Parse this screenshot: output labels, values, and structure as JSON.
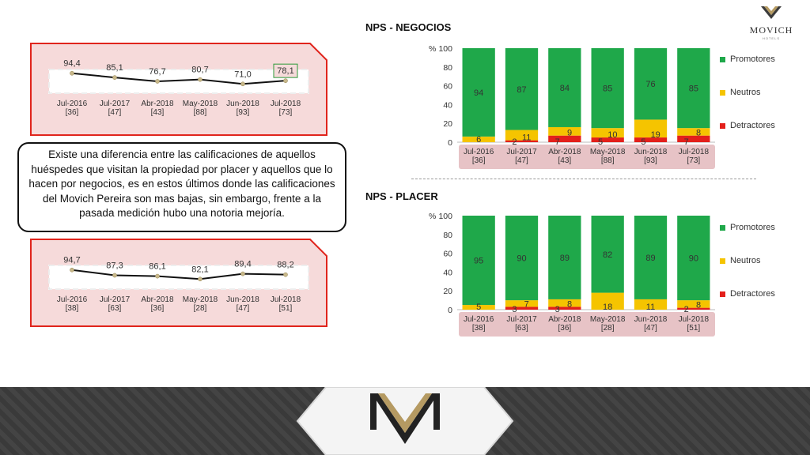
{
  "brand": {
    "name": "MOVICH",
    "sub": "HOTELS"
  },
  "callout": "Existe una diferencia entre las calificaciones de aquellos huéspedes que visitan la propiedad por placer y aquellos que lo hacen por negocios, es en estos últimos donde las calificaciones del Movich Pereira son mas bajas, sin embargo, frente a la pasada medición hubo una notoria mejoría.",
  "section_titles": {
    "negocios": "NPS - NEGOCIOS",
    "placer": "NPS - PLACER"
  },
  "colors": {
    "promotores": "#1fa84a",
    "neutros": "#f5c400",
    "detractores": "#e3201b",
    "panel_border": "#e0241c",
    "panel_fill": "#f6dada",
    "axis_box": "#e7c3c6"
  },
  "legend": [
    "Promotores",
    "Neutros",
    "Detractores"
  ],
  "chart_data": [
    {
      "type": "line",
      "categories": [
        "Jul-2016\n[36]",
        "Jul-2017\n[47]",
        "Abr-2018\n[43]",
        "May-2018\n[88]",
        "Jun-2018\n[93]",
        "Jul-2018\n[73]"
      ],
      "values": [
        94.4,
        85.1,
        76.7,
        80.7,
        71.0,
        78.1
      ],
      "labels": [
        "94,4",
        "85,1",
        "76,7",
        "80,7",
        "71,0",
        "78,1"
      ],
      "highlight_last": true
    },
    {
      "type": "line",
      "categories": [
        "Jul-2016\n[38]",
        "Jul-2017\n[63]",
        "Abr-2018\n[36]",
        "May-2018\n[28]",
        "Jun-2018\n[47]",
        "Jul-2018\n[51]"
      ],
      "values": [
        94.7,
        87.3,
        86.1,
        82.1,
        89.4,
        88.2
      ],
      "labels": [
        "94,7",
        "87,3",
        "86,1",
        "82,1",
        "89,4",
        "88,2"
      ],
      "highlight_last": false
    },
    {
      "type": "bar",
      "stacked": true,
      "title": "NPS - NEGOCIOS",
      "ylabel": "%",
      "ylim": [
        0,
        100
      ],
      "yticks": [
        0,
        20,
        40,
        60,
        80,
        100
      ],
      "categories": [
        "Jul-2016\n[36]",
        "Jul-2017\n[47]",
        "Abr-2018\n[43]",
        "May-2018\n[88]",
        "Jun-2018\n[93]",
        "Jul-2018\n[73]"
      ],
      "series": [
        {
          "name": "Detractores",
          "values": [
            0,
            2,
            7,
            5,
            5,
            7
          ],
          "labels": [
            "",
            "2",
            "7",
            "5",
            "5",
            "7"
          ]
        },
        {
          "name": "Neutros",
          "values": [
            6,
            11,
            9,
            10,
            19,
            8
          ],
          "labels": [
            "6",
            "11",
            "9",
            "10",
            "19",
            "8"
          ]
        },
        {
          "name": "Promotores",
          "values": [
            94,
            87,
            84,
            85,
            76,
            85
          ],
          "labels": [
            "94",
            "87",
            "84",
            "85",
            "76",
            "85"
          ]
        }
      ]
    },
    {
      "type": "bar",
      "stacked": true,
      "title": "NPS - PLACER",
      "ylabel": "%",
      "ylim": [
        0,
        100
      ],
      "yticks": [
        0,
        20,
        40,
        60,
        80,
        100
      ],
      "categories": [
        "Jul-2016\n[38]",
        "Jul-2017\n[63]",
        "Abr-2018\n[36]",
        "May-2018\n[28]",
        "Jun-2018\n[47]",
        "Jul-2018\n[51]"
      ],
      "series": [
        {
          "name": "Detractores",
          "values": [
            0,
            3,
            3,
            0,
            0,
            2
          ],
          "labels": [
            "",
            "3",
            "3",
            "",
            "",
            "2"
          ]
        },
        {
          "name": "Neutros",
          "values": [
            5,
            7,
            8,
            18,
            11,
            8
          ],
          "labels": [
            "5",
            "7",
            "8",
            "18",
            "11",
            "8"
          ]
        },
        {
          "name": "Promotores",
          "values": [
            95,
            90,
            89,
            82,
            89,
            90
          ],
          "labels": [
            "95",
            "90",
            "89",
            "82",
            "89",
            "90"
          ]
        }
      ]
    }
  ]
}
